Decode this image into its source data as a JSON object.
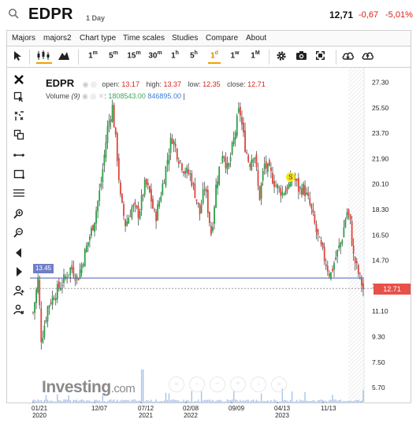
{
  "header": {
    "symbol": "EDPR",
    "interval": "1 Day",
    "last_price": "12,71",
    "change": "-0,67",
    "change_pct": "-5,01%"
  },
  "menu": [
    "Majors",
    "majors2",
    "Chart type",
    "Time scales",
    "Studies",
    "Compare",
    "About"
  ],
  "toolbar": {
    "timeframes": [
      {
        "num": "1",
        "unit": "m",
        "active": false
      },
      {
        "num": "5",
        "unit": "m",
        "active": false
      },
      {
        "num": "15",
        "unit": "m",
        "active": false
      },
      {
        "num": "30",
        "unit": "m",
        "active": false
      },
      {
        "num": "1",
        "unit": "h",
        "active": false
      },
      {
        "num": "5",
        "unit": "h",
        "active": false
      },
      {
        "num": "1",
        "unit": "d",
        "active": true
      },
      {
        "num": "1",
        "unit": "w",
        "active": false
      },
      {
        "num": "1",
        "unit": "M",
        "active": false
      }
    ]
  },
  "legend": {
    "symbol": "EDPR",
    "open_label": "open:",
    "open": "13.17",
    "high_label": "high:",
    "high": "13.37",
    "low_label": "low:",
    "low": "12.35",
    "close_label": "close:",
    "close": "12.71",
    "volume_label": "Volume",
    "volume_period": "(9)",
    "volume_val1": "1808543.00",
    "volume_val2": "846895.00"
  },
  "hline_tag": "13.45",
  "price_tag": "12.71",
  "event_marker": "S",
  "logo": {
    "main": "Investing",
    "suffix": ".com"
  },
  "colors": {
    "up": "#2aa147",
    "down": "#e0453b",
    "hline": "#6f7ec7",
    "price_tag": "#e8504a",
    "active_tab": "#f0a000",
    "marker": "#f7e51b"
  },
  "chart_data": {
    "type": "candlestick",
    "y_axis_ticks": [
      "27.30",
      "25.50",
      "23.70",
      "21.90",
      "20.10",
      "18.30",
      "16.50",
      "14.70",
      "12.90",
      "11.10",
      "9.30",
      "7.50",
      "5.70"
    ],
    "ylim": [
      5.0,
      28.0
    ],
    "x_tick_labels": [
      {
        "top": "01/21",
        "bottom": "2020"
      },
      {
        "top": "12/07",
        "bottom": ""
      },
      {
        "top": "07/12",
        "bottom": "2021"
      },
      {
        "top": "02/08",
        "bottom": "2022"
      },
      {
        "top": "09/09",
        "bottom": ""
      },
      {
        "top": "04/13",
        "bottom": "2023"
      },
      {
        "top": "11/13",
        "bottom": ""
      }
    ],
    "horizontal_line": 13.45,
    "last_close": 12.71,
    "close_path": [
      [
        0.0,
        11.0
      ],
      [
        0.015,
        13.4
      ],
      [
        0.025,
        9.0
      ],
      [
        0.045,
        11.5
      ],
      [
        0.07,
        12.5
      ],
      [
        0.09,
        13.2
      ],
      [
        0.115,
        14.2
      ],
      [
        0.135,
        13.4
      ],
      [
        0.16,
        15.5
      ],
      [
        0.185,
        17.5
      ],
      [
        0.205,
        20.0
      ],
      [
        0.225,
        24.0
      ],
      [
        0.24,
        25.6
      ],
      [
        0.255,
        22.0
      ],
      [
        0.265,
        19.0
      ],
      [
        0.28,
        17.2
      ],
      [
        0.3,
        18.5
      ],
      [
        0.32,
        18.0
      ],
      [
        0.34,
        20.2
      ],
      [
        0.355,
        19.3
      ],
      [
        0.37,
        17.6
      ],
      [
        0.385,
        19.2
      ],
      [
        0.4,
        21.0
      ],
      [
        0.42,
        23.5
      ],
      [
        0.44,
        22.0
      ],
      [
        0.46,
        21.0
      ],
      [
        0.475,
        20.8
      ],
      [
        0.49,
        19.5
      ],
      [
        0.505,
        18.0
      ],
      [
        0.52,
        20.0
      ],
      [
        0.54,
        16.5
      ],
      [
        0.555,
        20.2
      ],
      [
        0.575,
        22.5
      ],
      [
        0.59,
        21.0
      ],
      [
        0.61,
        23.5
      ],
      [
        0.625,
        25.5
      ],
      [
        0.64,
        23.0
      ],
      [
        0.655,
        21.5
      ],
      [
        0.67,
        22.5
      ],
      [
        0.685,
        19.0
      ],
      [
        0.7,
        21.5
      ],
      [
        0.72,
        20.8
      ],
      [
        0.735,
        20.0
      ],
      [
        0.755,
        19.5
      ],
      [
        0.775,
        20.0
      ],
      [
        0.79,
        20.6
      ],
      [
        0.805,
        19.7
      ],
      [
        0.82,
        19.8
      ],
      [
        0.84,
        18.5
      ],
      [
        0.86,
        16.5
      ],
      [
        0.88,
        15.0
      ],
      [
        0.9,
        13.6
      ],
      [
        0.915,
        14.8
      ],
      [
        0.935,
        16.2
      ],
      [
        0.95,
        18.2
      ],
      [
        0.96,
        17.5
      ],
      [
        0.97,
        15.0
      ],
      [
        0.985,
        13.8
      ],
      [
        1.0,
        12.7
      ]
    ],
    "volume_peak": 1808543,
    "volume_typical": 846895
  }
}
